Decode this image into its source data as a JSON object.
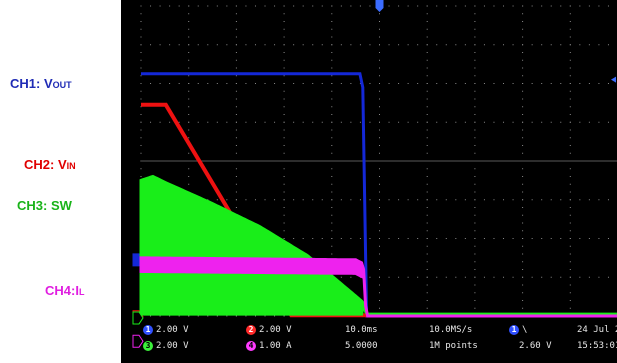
{
  "labels": {
    "ch1": {
      "text": "CH1: V",
      "sub": "OUT",
      "color": "#1f2bb5"
    },
    "ch2": {
      "text": "CH2: V",
      "sub": "IN",
      "color": "#e00000"
    },
    "ch3": {
      "text": "CH3: SW",
      "sub": "",
      "color": "#19b319"
    },
    "ch4": {
      "text": "CH4:I",
      "sub": "L",
      "color": "#e01ee0"
    }
  },
  "readouts": {
    "ch1_scale": "2.00 V",
    "ch2_scale": "2.00 V",
    "ch3_scale": "2.00 V",
    "ch4_scale": "1.00 A",
    "timebase": "10.0ms",
    "sample_rate": "10.0MS/s",
    "trigger_pos": "5.0000",
    "record_length": "1M points",
    "trigger_level": "2.60 V",
    "date": "24 Jul 2",
    "time": "15:53:01"
  },
  "chart_data": {
    "type": "line",
    "title": "",
    "x_unit": "ms",
    "x_divisions": 10,
    "x_per_div": 10.0,
    "y_divisions": 8,
    "series": [
      {
        "name": "CH1: VOUT",
        "color": "#1428d8",
        "scale_per_div": "2.00 V",
        "ground_div": 1.45,
        "x": [
          0,
          45.9,
          46.5,
          47.3,
          100
        ],
        "y_div": [
          6.25,
          6.25,
          5.9,
          0,
          0
        ]
      },
      {
        "name": "CH2: VIN",
        "color": "#ee1111",
        "scale_per_div": "2.00 V",
        "ground_div": -0.02,
        "x": [
          0,
          5.2,
          31.5,
          100
        ],
        "y_div": [
          5.45,
          5.45,
          0.02,
          0.02
        ]
      },
      {
        "name": "CH3: SW",
        "color": "#19ee19",
        "scale_per_div": "2.00 V",
        "ground_div": -0.05,
        "switching": true,
        "x": [
          0,
          2.5,
          5.0,
          15.0,
          25.0,
          35.0,
          46.6,
          47.2,
          100
        ],
        "y_div": [
          3.5,
          3.6,
          3.45,
          2.9,
          2.3,
          1.55,
          0.35,
          0.05,
          0.05
        ]
      },
      {
        "name": "CH4:IL",
        "color": "#ee22ee",
        "scale_per_div": "1.00 A",
        "ground_div": -0.65,
        "switching": true,
        "x": [
          0,
          45.0,
          46.6,
          47.2,
          100
        ],
        "y_div": [
          1.5,
          1.45,
          1.35,
          0.0,
          0.0
        ]
      }
    ]
  }
}
